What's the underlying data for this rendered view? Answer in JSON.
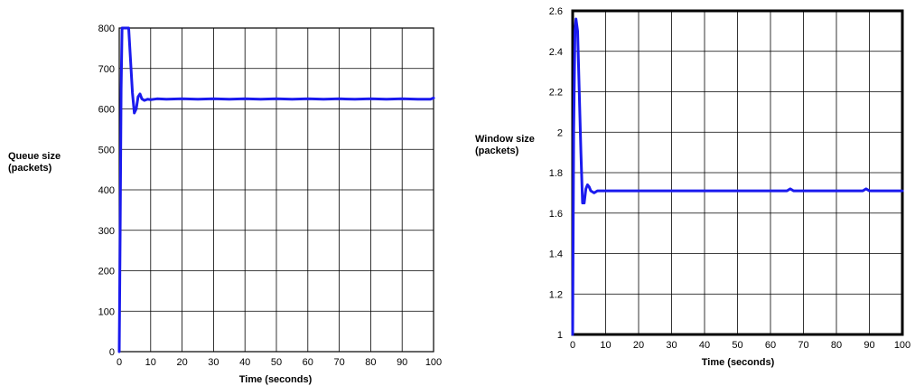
{
  "chart_data": [
    {
      "type": "line",
      "title": "",
      "xlabel": "Time (seconds)",
      "ylabel_lines": [
        "Queue size",
        "(packets)"
      ],
      "xlim": [
        0,
        100
      ],
      "ylim": [
        0,
        800
      ],
      "xticks": [
        0,
        10,
        20,
        30,
        40,
        50,
        60,
        70,
        80,
        90,
        100
      ],
      "yticks": [
        0,
        100,
        200,
        300,
        400,
        500,
        600,
        700,
        800
      ],
      "grid": true,
      "legend": "none",
      "series": [
        {
          "color": "#1a1aee",
          "x": [
            0,
            0.3,
            0.6,
            0.9,
            1.5,
            2.5,
            3.0,
            3.6,
            4.2,
            4.8,
            5.4,
            6.0,
            6.6,
            7.2,
            8,
            9,
            10,
            12,
            15,
            20,
            25,
            30,
            35,
            40,
            45,
            50,
            55,
            60,
            65,
            70,
            75,
            80,
            85,
            90,
            95,
            99,
            100
          ],
          "y": [
            0,
            300,
            650,
            800,
            800,
            800,
            800,
            720,
            640,
            590,
            600,
            630,
            637,
            625,
            621,
            624,
            623,
            625,
            624,
            625,
            624,
            625,
            624,
            625,
            624,
            625,
            624,
            625,
            624,
            625,
            624,
            625,
            624,
            625,
            624,
            624,
            627
          ]
        }
      ]
    },
    {
      "type": "line",
      "title": "",
      "xlabel": "Time (seconds)",
      "ylabel_lines": [
        "Window size",
        "(packets)"
      ],
      "xlim": [
        0,
        100
      ],
      "ylim": [
        1,
        2.6
      ],
      "xticks": [
        0,
        10,
        20,
        30,
        40,
        50,
        60,
        70,
        80,
        90,
        100
      ],
      "yticks": [
        1,
        1.2,
        1.4,
        1.6,
        1.8,
        2,
        2.2,
        2.4,
        2.6
      ],
      "ytick_labels": [
        "1",
        "1.2",
        "1.4",
        "1.6",
        "1.8",
        "2",
        "2.2",
        "2.4",
        "2.6"
      ],
      "grid": true,
      "legend": "none",
      "series": [
        {
          "color": "#1a1aee",
          "x": [
            0,
            0.3,
            0.7,
            1.0,
            1.5,
            2.0,
            2.5,
            3.0,
            3.5,
            4.0,
            4.5,
            5.0,
            5.5,
            6.5,
            7.5,
            9,
            12,
            20,
            40,
            60,
            65,
            66,
            67,
            80,
            88,
            89,
            90,
            100
          ],
          "y": [
            1,
            2.0,
            2.5,
            2.56,
            2.5,
            2.2,
            1.9,
            1.65,
            1.65,
            1.72,
            1.74,
            1.73,
            1.71,
            1.7,
            1.71,
            1.71,
            1.71,
            1.71,
            1.71,
            1.71,
            1.71,
            1.72,
            1.71,
            1.71,
            1.71,
            1.72,
            1.71,
            1.71
          ]
        }
      ]
    }
  ]
}
